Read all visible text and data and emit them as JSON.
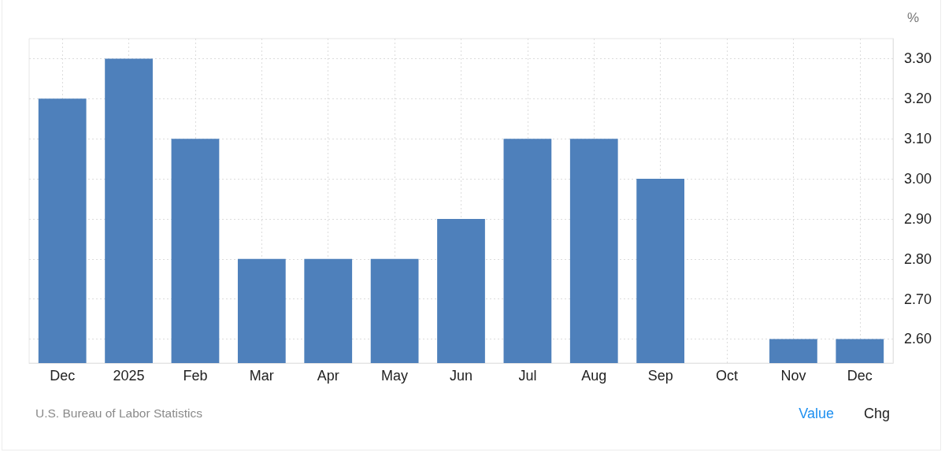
{
  "chart_data": {
    "type": "bar",
    "categories": [
      "Dec",
      "2025",
      "Feb",
      "Mar",
      "Apr",
      "May",
      "Jun",
      "Jul",
      "Aug",
      "Sep",
      "Oct",
      "Nov",
      "Dec"
    ],
    "values": [
      3.2,
      3.3,
      3.1,
      2.8,
      2.8,
      2.8,
      2.9,
      3.1,
      3.1,
      3.0,
      null,
      2.6,
      2.6
    ],
    "color": "#4e80bb",
    "ylabel": "%",
    "ylim": [
      2.54,
      3.35
    ],
    "yticks": [
      {
        "value": 2.6,
        "label": "2.60"
      },
      {
        "value": 2.7,
        "label": "2.70"
      },
      {
        "value": 2.8,
        "label": "2.80"
      },
      {
        "value": 2.9,
        "label": "2.90"
      },
      {
        "value": 3.0,
        "label": "3.00"
      },
      {
        "value": 3.1,
        "label": "3.10"
      },
      {
        "value": 3.2,
        "label": "3.20"
      },
      {
        "value": 3.3,
        "label": "3.30"
      }
    ],
    "grid": true,
    "annotations": [
      "U.S. Bureau of Labor Statistics",
      "Value",
      "Chg"
    ]
  }
}
